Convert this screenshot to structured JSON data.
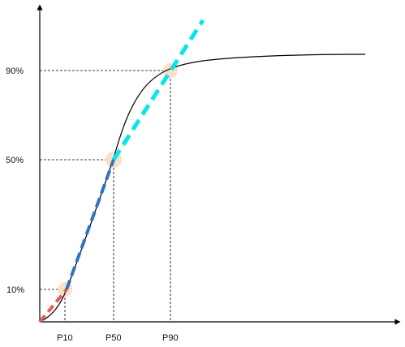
{
  "colors": {
    "axis": "#000000",
    "curve": "#000000",
    "guide": "#000000",
    "marker": "#fddfc4",
    "segment_low": "#e05a5a",
    "segment_mid": "#2f73c4",
    "segment_high": "#00e8ee"
  },
  "y_labels": {
    "p90": "90%",
    "p50": "50%",
    "p10": "10%"
  },
  "x_labels": {
    "p10": "P10",
    "p50": "P50",
    "p90": "P90"
  }
}
